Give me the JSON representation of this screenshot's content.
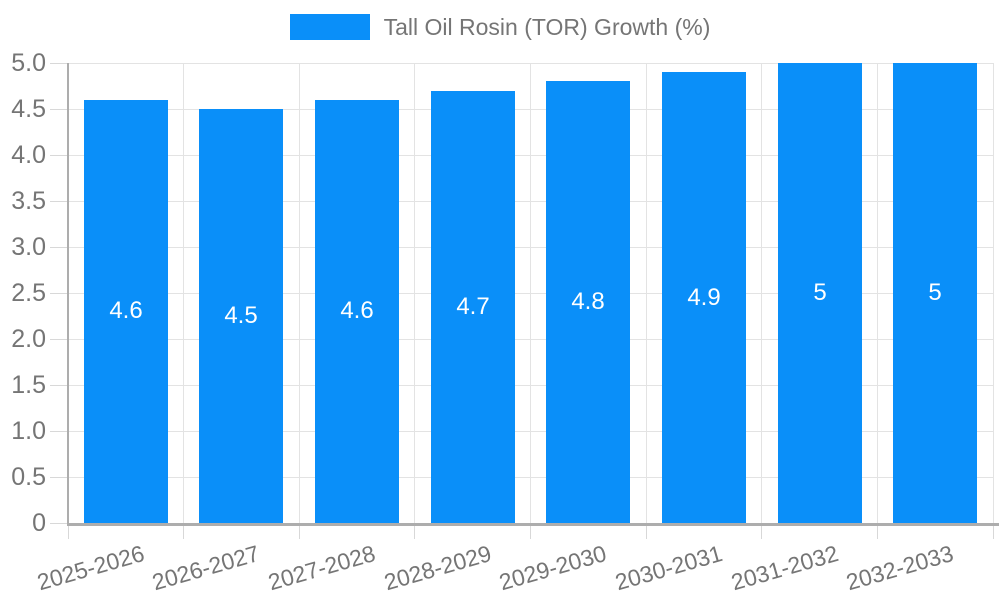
{
  "legend": {
    "label": "Tall Oil Rosin (TOR) Growth (%)"
  },
  "chart_data": {
    "type": "bar",
    "title": "",
    "legend_entries": [
      "Tall Oil Rosin (TOR) Growth (%)"
    ],
    "legend_position": "top",
    "categories": [
      "2025-2026",
      "2026-2027",
      "2027-2028",
      "2028-2029",
      "2029-2030",
      "2030-2031",
      "2031-2032",
      "2032-2033"
    ],
    "series": [
      {
        "name": "Tall Oil Rosin (TOR) Growth (%)",
        "values": [
          4.6,
          4.5,
          4.6,
          4.7,
          4.8,
          4.9,
          5,
          5
        ],
        "bar_labels": [
          "4.6",
          "4.5",
          "4.6",
          "4.7",
          "4.8",
          "4.9",
          "5",
          "5"
        ]
      }
    ],
    "xlabel": "",
    "ylabel": "",
    "ylim": [
      0,
      5
    ],
    "ytick_step": 0.5,
    "ytick_labels": [
      "0",
      "0.5",
      "1.0",
      "1.5",
      "2.0",
      "2.5",
      "3.0",
      "3.5",
      "4.0",
      "4.5",
      "5.0"
    ],
    "grid": true,
    "colors": {
      "bar": "#0a8ff9",
      "bar_label_text": "#ffffff",
      "axis_text": "#757575",
      "gridline": "#e3e3e3",
      "tick": "#d8d8d8",
      "axis_line": "#adadad",
      "background": "#ffffff"
    }
  }
}
